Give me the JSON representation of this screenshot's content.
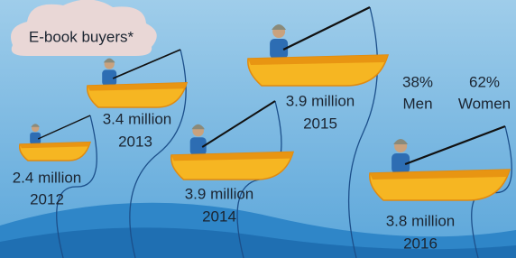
{
  "label": "E-book buyers*",
  "years": [
    {
      "value": "2.4 million",
      "year": "2012"
    },
    {
      "value": "3.4 million",
      "year": "2013"
    },
    {
      "value": "3.9 million",
      "year": "2014"
    },
    {
      "value": "3.9 million",
      "year": "2015"
    },
    {
      "value": "3.8 million",
      "year": "2016"
    }
  ],
  "gender": [
    {
      "percent": "38%",
      "label": "Men"
    },
    {
      "percent": "62%",
      "label": "Women"
    }
  ]
}
